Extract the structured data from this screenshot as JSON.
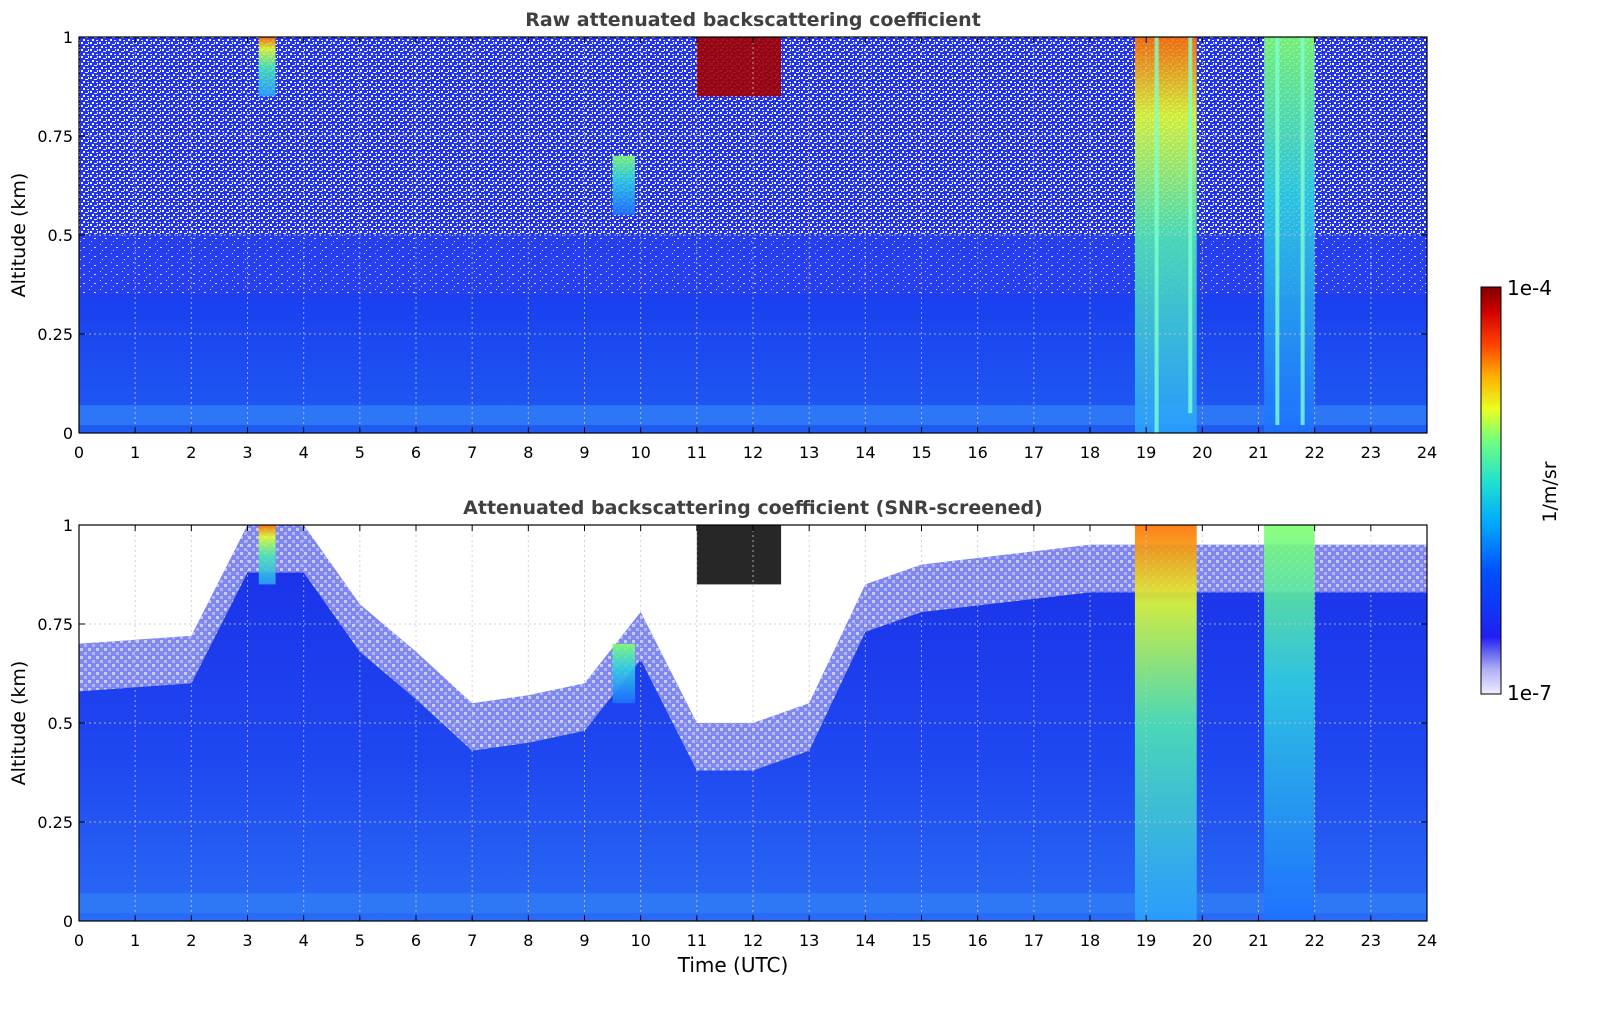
{
  "chart_data": [
    {
      "type": "heatmap",
      "title": "Raw attenuated backscattering coefficient",
      "xlabel": "",
      "ylabel": "Altitude (km)",
      "xlim": [
        0,
        24
      ],
      "ylim": [
        0,
        1
      ],
      "x_ticks": [
        "0",
        "1",
        "2",
        "3",
        "4",
        "5",
        "6",
        "7",
        "8",
        "9",
        "10",
        "11",
        "12",
        "13",
        "14",
        "15",
        "16",
        "17",
        "18",
        "19",
        "20",
        "21",
        "22",
        "23",
        "24"
      ],
      "y_ticks": [
        "0",
        "0.25",
        "0.5",
        "0.75",
        "1"
      ],
      "grid": true,
      "colorscale": "jet, log",
      "features": [
        {
          "t_start": 3.2,
          "t_end": 3.5,
          "alt_min": 0.85,
          "alt_max": 1.0,
          "level": "high"
        },
        {
          "t_start": 9.5,
          "t_end": 9.9,
          "alt_min": 0.55,
          "alt_max": 0.7,
          "level": "mid"
        },
        {
          "t_start": 11.0,
          "t_end": 12.5,
          "alt_min": 0.85,
          "alt_max": 1.0,
          "level": "very high"
        },
        {
          "t_start": 18.8,
          "t_end": 19.9,
          "alt_min": 0.0,
          "alt_max": 1.0,
          "level": "high"
        },
        {
          "t_start": 21.1,
          "t_end": 22.0,
          "alt_min": 0.0,
          "alt_max": 1.0,
          "level": "mid"
        }
      ]
    },
    {
      "type": "heatmap",
      "title": "Attenuated backscattering coefficient (SNR-screened)",
      "xlabel": "Time (UTC)",
      "ylabel": "Altitude (km)",
      "xlim": [
        0,
        24
      ],
      "ylim": [
        0,
        1
      ],
      "x_ticks": [
        "0",
        "1",
        "2",
        "3",
        "4",
        "5",
        "6",
        "7",
        "8",
        "9",
        "10",
        "11",
        "12",
        "13",
        "14",
        "15",
        "16",
        "17",
        "18",
        "19",
        "20",
        "21",
        "22",
        "23",
        "24"
      ],
      "y_ticks": [
        "0",
        "0.25",
        "0.5",
        "0.75",
        "1"
      ],
      "grid": true,
      "colorscale": "jet, log",
      "screened_top_km": [
        {
          "t": 0,
          "alt": 0.7
        },
        {
          "t": 2,
          "alt": 0.72
        },
        {
          "t": 3,
          "alt": 1.0
        },
        {
          "t": 4,
          "alt": 1.0
        },
        {
          "t": 5,
          "alt": 0.8
        },
        {
          "t": 6,
          "alt": 0.68
        },
        {
          "t": 7,
          "alt": 0.55
        },
        {
          "t": 8,
          "alt": 0.57
        },
        {
          "t": 9,
          "alt": 0.6
        },
        {
          "t": 10,
          "alt": 0.78
        },
        {
          "t": 11,
          "alt": 0.5
        },
        {
          "t": 12,
          "alt": 0.5
        },
        {
          "t": 13,
          "alt": 0.55
        },
        {
          "t": 14,
          "alt": 0.85
        },
        {
          "t": 15,
          "alt": 0.9
        },
        {
          "t": 18,
          "alt": 0.95
        },
        {
          "t": 20,
          "alt": 0.95
        },
        {
          "t": 24,
          "alt": 0.95
        }
      ]
    }
  ],
  "colorbar": {
    "label": "1/m/sr",
    "max_label": "1e-4",
    "min_label": "1e-7"
  }
}
